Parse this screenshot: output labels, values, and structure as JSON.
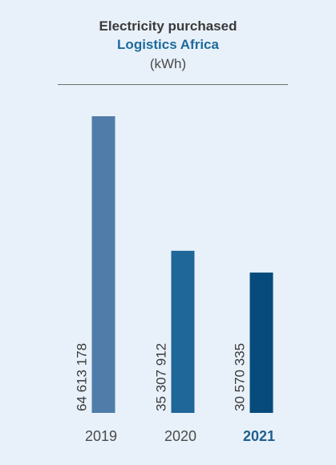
{
  "header": {
    "title": "Electricity purchased",
    "subtitle": "Logistics Africa",
    "unit": "(kWh)"
  },
  "colors": {
    "background": "#e8f1fa",
    "highlight_label": "#1f5f8e",
    "subtitle": "#1f6a9a"
  },
  "chart_data": {
    "type": "bar",
    "categories": [
      "2019",
      "2020",
      "2021"
    ],
    "values": [
      64613178,
      35307912,
      30570335
    ],
    "value_labels": [
      "64 613 178",
      "35 307 912",
      "30 570 335"
    ],
    "bar_colors": [
      "#4f7ca8",
      "#1f6699",
      "#064b7c"
    ],
    "highlighted_category": "2021",
    "title": "Electricity purchased",
    "subtitle": "Logistics Africa",
    "unit": "(kWh)",
    "ylim": [
      0,
      64613178
    ],
    "grid": false,
    "legend": "none"
  }
}
